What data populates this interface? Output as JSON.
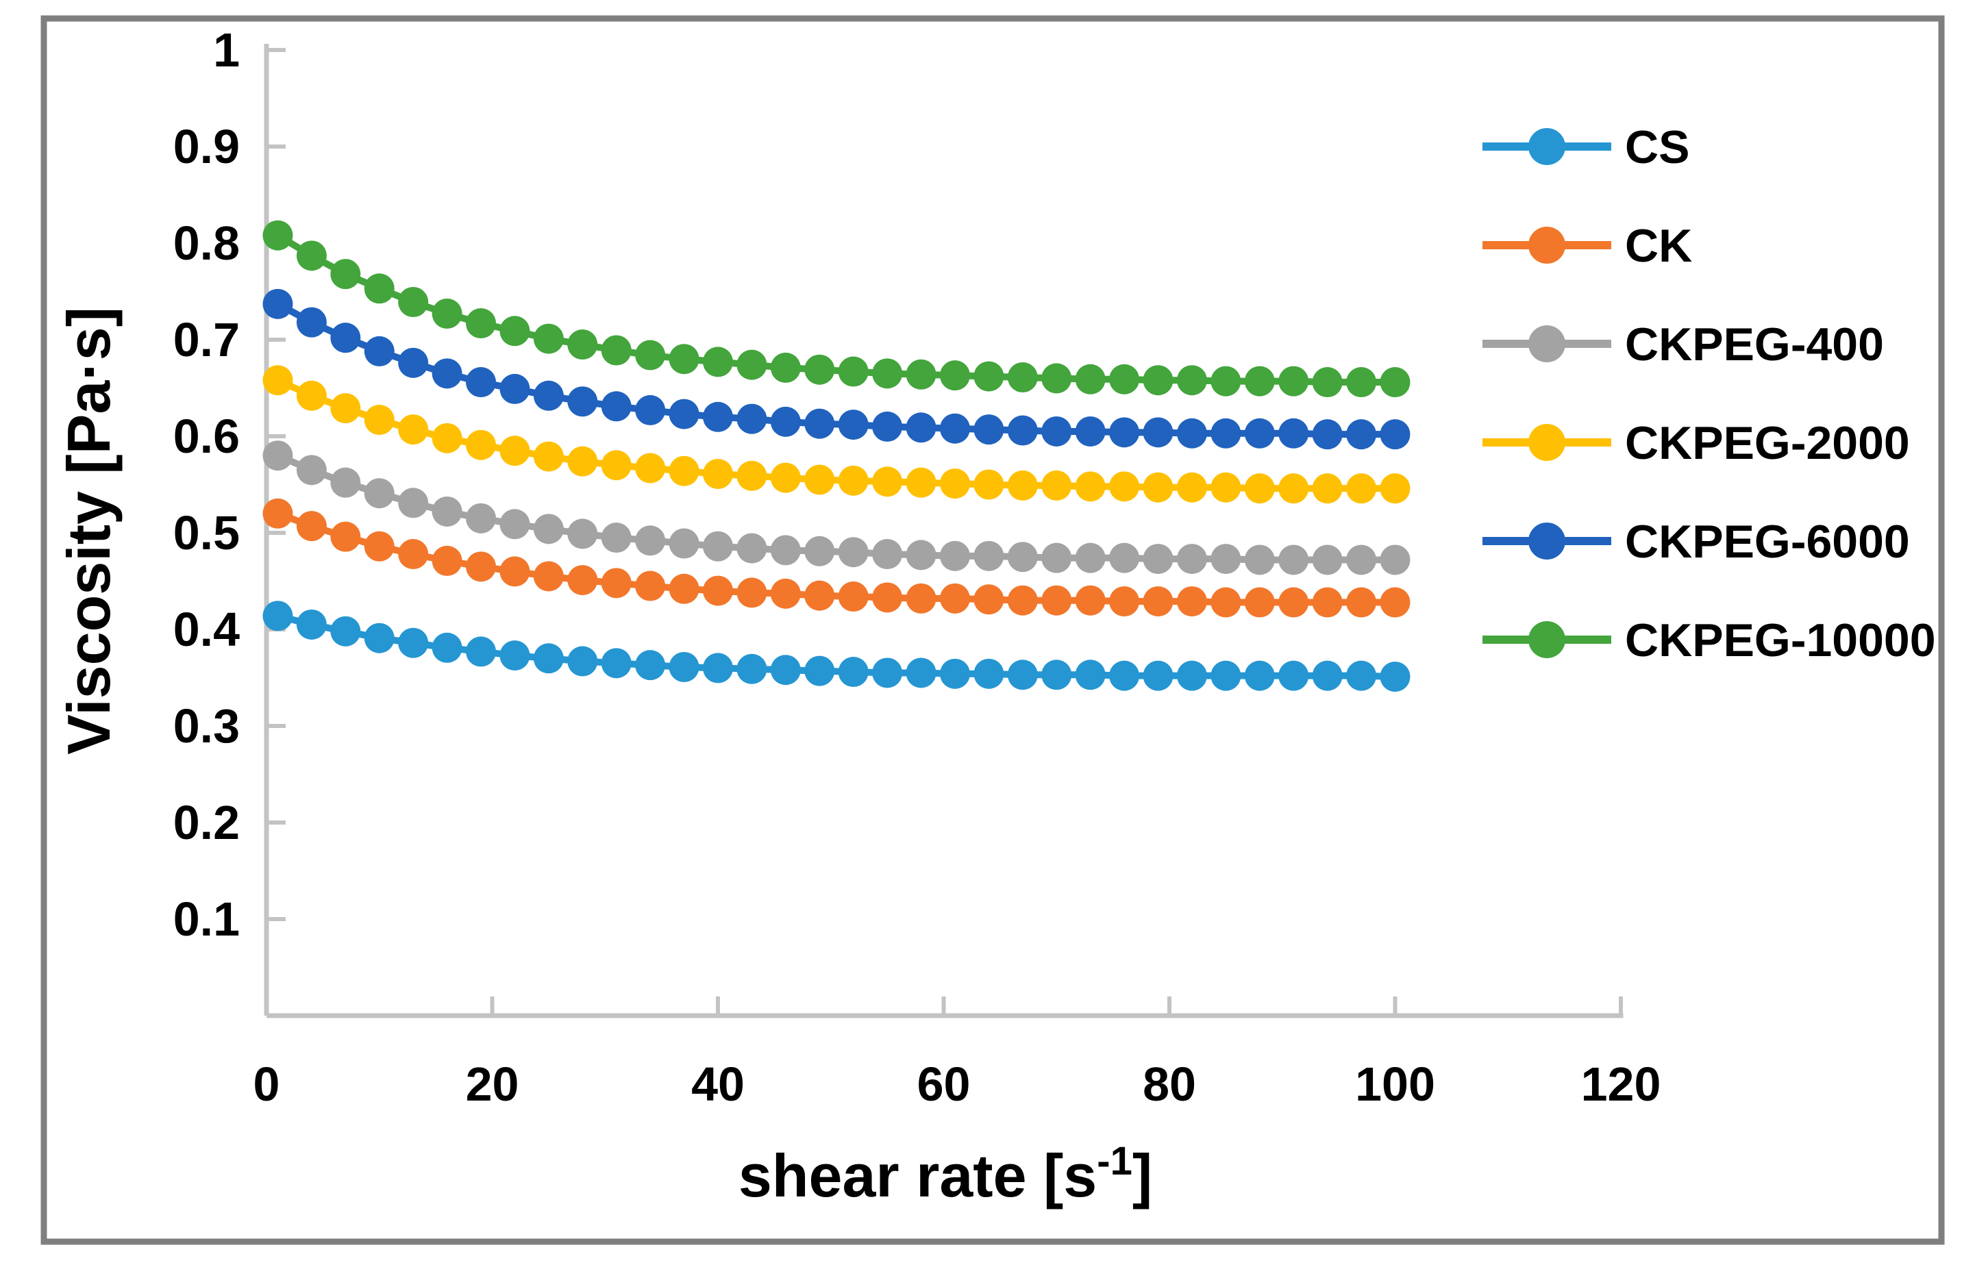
{
  "figure": {
    "background": "#FFFFFF",
    "border_color": "#7F7F7F",
    "axis_color": "#C3C3C3",
    "text_color": "#000000"
  },
  "chart_data": {
    "type": "line",
    "marker": "circle",
    "title": "",
    "xlabel": "shear rate [s⁻¹]",
    "xlabel_parts": {
      "prefix": "shear rate [s",
      "superscript": "-1",
      "suffix": "]"
    },
    "ylabel": "Viscosity [Pa·s]",
    "xlim": [
      0,
      120
    ],
    "ylim": [
      0,
      1
    ],
    "x_ticks": [
      0,
      20,
      40,
      60,
      80,
      100,
      120
    ],
    "y_ticks": [
      0.1,
      0.2,
      0.3,
      0.4,
      0.5,
      0.6,
      0.7,
      0.8,
      0.9,
      1.0
    ],
    "y_tick_labels": [
      "0.1",
      "0.2",
      "0.3",
      "0.4",
      "0.5",
      "0.6",
      "0.7",
      "0.8",
      "0.9",
      "1"
    ],
    "grid": false,
    "legend_position": "right",
    "x": [
      1,
      4,
      7,
      10,
      13,
      16,
      19,
      22,
      25,
      28,
      31,
      34,
      37,
      40,
      43,
      46,
      49,
      52,
      55,
      58,
      61,
      64,
      67,
      70,
      73,
      76,
      79,
      82,
      85,
      88,
      91,
      94,
      97,
      100
    ],
    "series": [
      {
        "name": "CS",
        "color": "#2596D2",
        "values": [
          0.414,
          0.405,
          0.398,
          0.391,
          0.386,
          0.381,
          0.377,
          0.373,
          0.37,
          0.367,
          0.365,
          0.363,
          0.361,
          0.36,
          0.359,
          0.358,
          0.357,
          0.356,
          0.355,
          0.355,
          0.354,
          0.354,
          0.353,
          0.353,
          0.353,
          0.352,
          0.352,
          0.352,
          0.352,
          0.352,
          0.352,
          0.352,
          0.352,
          0.351
        ]
      },
      {
        "name": "CK",
        "color": "#F2772B",
        "values": [
          0.52,
          0.507,
          0.496,
          0.486,
          0.478,
          0.471,
          0.465,
          0.46,
          0.455,
          0.451,
          0.448,
          0.445,
          0.442,
          0.44,
          0.438,
          0.437,
          0.435,
          0.434,
          0.433,
          0.432,
          0.432,
          0.431,
          0.43,
          0.43,
          0.43,
          0.429,
          0.429,
          0.429,
          0.428,
          0.428,
          0.428,
          0.428,
          0.428,
          0.428
        ]
      },
      {
        "name": "CKPEG-400",
        "color": "#A3A3A3",
        "values": [
          0.58,
          0.565,
          0.552,
          0.541,
          0.531,
          0.522,
          0.515,
          0.509,
          0.504,
          0.499,
          0.495,
          0.492,
          0.489,
          0.486,
          0.484,
          0.482,
          0.481,
          0.48,
          0.478,
          0.477,
          0.476,
          0.476,
          0.475,
          0.474,
          0.474,
          0.474,
          0.473,
          0.473,
          0.473,
          0.472,
          0.472,
          0.472,
          0.472,
          0.472
        ]
      },
      {
        "name": "CKPEG-2000",
        "color": "#FFC003",
        "values": [
          0.658,
          0.642,
          0.629,
          0.617,
          0.607,
          0.598,
          0.591,
          0.585,
          0.579,
          0.574,
          0.57,
          0.567,
          0.564,
          0.561,
          0.559,
          0.557,
          0.555,
          0.554,
          0.553,
          0.552,
          0.551,
          0.55,
          0.549,
          0.549,
          0.548,
          0.548,
          0.547,
          0.547,
          0.547,
          0.546,
          0.546,
          0.546,
          0.546,
          0.546
        ]
      },
      {
        "name": "CKPEG-6000",
        "color": "#2062BE",
        "values": [
          0.737,
          0.718,
          0.702,
          0.688,
          0.676,
          0.665,
          0.656,
          0.649,
          0.642,
          0.636,
          0.631,
          0.627,
          0.623,
          0.62,
          0.618,
          0.615,
          0.613,
          0.612,
          0.61,
          0.609,
          0.608,
          0.607,
          0.606,
          0.605,
          0.605,
          0.604,
          0.604,
          0.603,
          0.603,
          0.603,
          0.603,
          0.602,
          0.602,
          0.602
        ]
      },
      {
        "name": "CKPEG-10000",
        "color": "#43A53C",
        "values": [
          0.808,
          0.787,
          0.768,
          0.753,
          0.739,
          0.727,
          0.717,
          0.709,
          0.701,
          0.695,
          0.689,
          0.684,
          0.68,
          0.677,
          0.674,
          0.671,
          0.669,
          0.667,
          0.665,
          0.664,
          0.663,
          0.662,
          0.661,
          0.66,
          0.659,
          0.659,
          0.658,
          0.658,
          0.657,
          0.657,
          0.657,
          0.656,
          0.656,
          0.656
        ]
      }
    ]
  }
}
